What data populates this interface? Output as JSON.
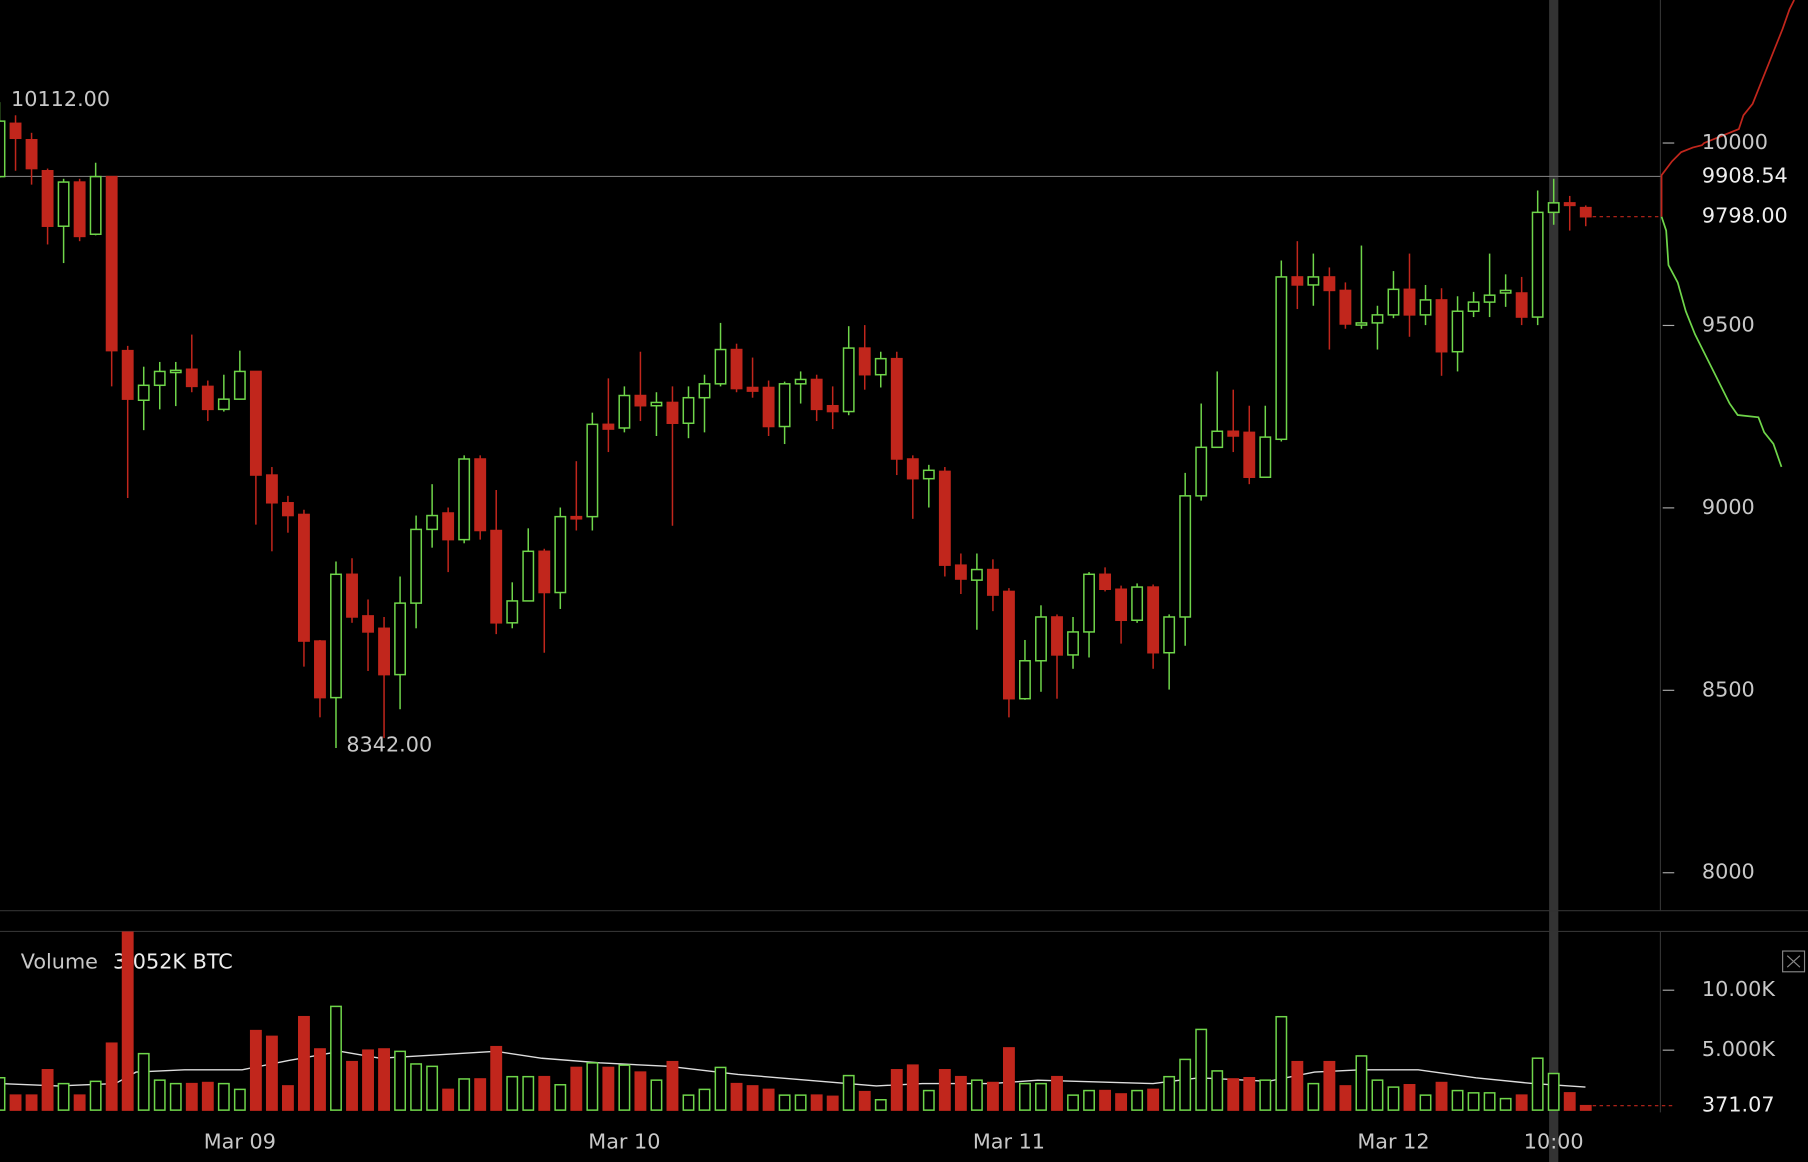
{
  "chart_data": {
    "type": "candlestick",
    "x": [
      -15,
      -14,
      -13,
      -12,
      -11,
      -10,
      -9,
      -8,
      -7,
      -6,
      -5,
      -4,
      -3,
      -2,
      -1,
      0,
      1,
      2,
      3,
      4,
      5,
      6,
      7,
      8,
      9,
      10,
      11,
      12,
      13,
      14,
      15,
      16,
      17,
      18,
      19,
      20,
      21,
      22,
      23,
      24,
      25,
      26,
      27,
      28,
      29,
      30,
      31,
      32,
      33,
      34,
      35,
      36,
      37,
      38,
      39,
      40,
      41,
      42,
      43,
      44,
      45,
      46,
      47,
      48,
      49,
      50,
      51,
      52,
      53,
      54,
      55,
      56,
      57,
      58,
      59,
      60,
      61,
      62,
      63,
      64,
      65,
      66,
      67,
      68,
      69,
      70,
      71,
      72,
      73,
      74,
      75,
      76,
      77,
      78,
      79,
      80,
      81,
      82,
      83,
      84
    ],
    "open": [
      9908,
      10054,
      10009,
      9924,
      9772,
      9893,
      9750,
      9908,
      9431,
      9295,
      9336,
      9371,
      9380,
      9333,
      9270,
      9298,
      9374,
      9090,
      9014,
      8982,
      8635,
      8480,
      8818,
      8704,
      8670,
      8543,
      8739,
      8941,
      8986,
      8913,
      9134,
      8938,
      8685,
      8745,
      8881,
      8768,
      8976,
      8976,
      9229,
      9219,
      9308,
      9280,
      9289,
      9232,
      9302,
      9340,
      9434,
      9330,
      9330,
      9223,
      9340,
      9352,
      9280,
      9264,
      9438,
      9365,
      9409,
      9134,
      9080,
      9100,
      8843,
      8802,
      8831,
      8771,
      8477,
      8581,
      8701,
      8597,
      8660,
      8818,
      8777,
      8692,
      8783,
      8603,
      8701,
      9033,
      9166,
      9210,
      9207,
      9084,
      9188,
      9633,
      9611,
      9633,
      9596,
      9501,
      9507,
      9529,
      9599,
      9529,
      9570,
      9428,
      9539,
      9564,
      9589,
      9589,
      9523,
      9810,
      9836,
      9823
    ],
    "high": [
      10112,
      10076,
      10028,
      9930,
      9902,
      9902,
      9946,
      9908,
      9444,
      9387,
      9400,
      9400,
      9475,
      9349,
      9365,
      9431,
      9374,
      9112,
      9033,
      8995,
      8638,
      8853,
      8862,
      8749,
      8701,
      8812,
      8979,
      9065,
      9001,
      9144,
      9144,
      9049,
      8796,
      8944,
      8888,
      9001,
      9128,
      9261,
      9355,
      9333,
      9428,
      9317,
      9333,
      9333,
      9365,
      9507,
      9450,
      9412,
      9349,
      9346,
      9374,
      9365,
      9333,
      9498,
      9501,
      9428,
      9428,
      9144,
      9118,
      9112,
      8875,
      8875,
      8859,
      8780,
      8638,
      8733,
      8708,
      8701,
      8824,
      8837,
      8787,
      8793,
      8790,
      8708,
      9096,
      9286,
      9374,
      9324,
      9280,
      9280,
      9678,
      9731,
      9697,
      9659,
      9618,
      9719,
      9554,
      9649,
      9697,
      9611,
      9602,
      9580,
      9592,
      9697,
      9640,
      9633,
      9870,
      9902,
      9855,
      9829
    ],
    "low": [
      9905,
      9924,
      9886,
      9722,
      9671,
      9731,
      9747,
      9333,
      9027,
      9213,
      9270,
      9279,
      9317,
      9238,
      9264,
      9298,
      8954,
      8881,
      8932,
      8565,
      8426,
      8342,
      8685,
      8553,
      8369,
      8448,
      8670,
      8891,
      8824,
      8903,
      8913,
      8654,
      8670,
      8745,
      8603,
      8723,
      8938,
      8938,
      9153,
      9207,
      9238,
      9197,
      8951,
      9191,
      9207,
      9333,
      9317,
      9302,
      9197,
      9175,
      9286,
      9238,
      9216,
      9254,
      9324,
      9330,
      9090,
      8970,
      9001,
      8812,
      8764,
      8666,
      8717,
      8426,
      8474,
      8496,
      8477,
      8559,
      8590,
      8771,
      8628,
      8685,
      8559,
      8502,
      8622,
      9020,
      9166,
      9153,
      9065,
      9084,
      9182,
      9545,
      9554,
      9434,
      9491,
      9491,
      9434,
      9520,
      9469,
      9501,
      9362,
      9374,
      9523,
      9523,
      9551,
      9501,
      9501,
      9776,
      9760,
      9772
    ],
    "close": [
      10060,
      10013,
      9930,
      9772,
      9893,
      9744,
      9908,
      9431,
      9298,
      9336,
      9374,
      9377,
      9333,
      9270,
      9298,
      9374,
      9090,
      9014,
      8979,
      8635,
      8480,
      8818,
      8701,
      8660,
      8543,
      8739,
      8941,
      8979,
      8913,
      9134,
      8938,
      8685,
      8745,
      8881,
      8768,
      8976,
      8970,
      9229,
      9216,
      9308,
      9280,
      9289,
      9232,
      9302,
      9340,
      9434,
      9327,
      9320,
      9223,
      9340,
      9352,
      9270,
      9264,
      9438,
      9365,
      9409,
      9134,
      9080,
      9103,
      8843,
      8805,
      8831,
      8761,
      8477,
      8581,
      8701,
      8597,
      8660,
      8818,
      8777,
      8692,
      8783,
      8603,
      8701,
      9033,
      9166,
      9210,
      9197,
      9084,
      9194,
      9633,
      9611,
      9633,
      9596,
      9504,
      9507,
      9529,
      9599,
      9529,
      9570,
      9428,
      9539,
      9564,
      9583,
      9596,
      9523,
      9810,
      9836,
      9829,
      9798
    ],
    "volume": [
      2700,
      1250,
      1250,
      3365,
      2210,
      1250,
      2400,
      5580,
      15000,
      4710,
      2500,
      2210,
      2210,
      2300,
      2210,
      1730,
      6630,
      6150,
      2020,
      7790,
      5100,
      8650,
      4040,
      5000,
      5100,
      4900,
      3850,
      3650,
      1730,
      2600,
      2600,
      5290,
      2790,
      2790,
      2790,
      2115,
      3560,
      3940,
      3560,
      3750,
      3170,
      2500,
      4040,
      1250,
      1730,
      3560,
      2210,
      2020,
      1730,
      1250,
      1250,
      1250,
      1150,
      2880,
      1540,
      865,
      3365,
      3750,
      1630,
      3365,
      2790,
      2500,
      2300,
      5190,
      2210,
      2210,
      2790,
      1250,
      1630,
      1630,
      1350,
      1630,
      1730,
      2790,
      4230,
      6730,
      3270,
      2600,
      2700,
      2500,
      7790,
      4040,
      2210,
      4040,
      2020,
      4520,
      2500,
      1920,
      2115,
      1250,
      2300,
      1630,
      1440,
      1440,
      960,
      1250,
      4330,
      3052,
      1440,
      371.07
    ],
    "up_color": "#6fd54a",
    "down_color": "#c1261c",
    "xlim": [
      -14.97,
      88.66
    ],
    "xticks": [
      {
        "value": 0,
        "label": "Mar 09"
      },
      {
        "value": 24,
        "label": "Mar 10"
      },
      {
        "value": 48,
        "label": "Mar 11"
      },
      {
        "value": 72,
        "label": "Mar 12"
      },
      {
        "value": 82,
        "label": "10:00"
      }
    ],
    "ylim": [
      7896,
      10392
    ],
    "yticks": [
      8000,
      8500,
      9000,
      9500,
      10000
    ],
    "volume_ylim": [
      0,
      14900
    ],
    "volume_ticks": [
      {
        "value": 5000,
        "label": "5.000K"
      },
      {
        "value": 10000,
        "label": "10.00K"
      }
    ],
    "volume_title": "Volume",
    "volume_readout": {
      "value": 3052,
      "label": "3.052K BTC"
    },
    "high_label": {
      "value": 10112,
      "label": "10112.00"
    },
    "low_label": {
      "value": 8342,
      "label": "8342.00"
    },
    "crosshair_x": 82,
    "crosshair_price": {
      "value": 9908.54,
      "label": "9908.54"
    },
    "last_price": {
      "value": 9798,
      "label": "9798.00"
    }
  }
}
